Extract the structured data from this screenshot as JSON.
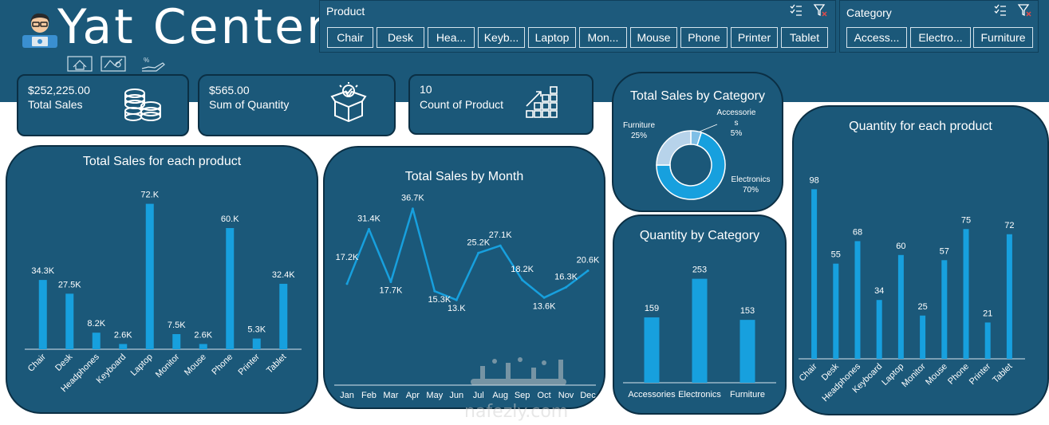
{
  "app": {
    "title": "Yat Center"
  },
  "colors": {
    "header_bg": "#1b5879",
    "card_border": "#0b2f44",
    "bar": "#17a0de",
    "donut_light": "#b7d3ea",
    "text": "#ffffff"
  },
  "header": {
    "nav_icons": [
      "home-icon",
      "map-icon",
      "discount-hand-icon"
    ]
  },
  "slicers": {
    "product": {
      "title": "Product",
      "items": [
        "Chair",
        "Desk",
        "Hea...",
        "Keyb...",
        "Laptop",
        "Mon...",
        "Mouse",
        "Phone",
        "Printer",
        "Tablet"
      ]
    },
    "category": {
      "title": "Category",
      "items": [
        "Access...",
        "Electro...",
        "Furniture"
      ]
    }
  },
  "kpis": [
    {
      "value": "$252,225.00",
      "label": "Total Sales",
      "icon": "coins-icon"
    },
    {
      "value": "$565.00",
      "label": "Sum of Quantity",
      "icon": "box-check-icon"
    },
    {
      "value": "10",
      "label": "Count of Product",
      "icon": "stacked-boxes-growth-icon"
    }
  ],
  "chart_data": [
    {
      "id": "sales_by_product",
      "type": "bar",
      "title": "Total Sales for each product",
      "categories": [
        "Chair",
        "Desk",
        "Headphones",
        "Keyboard",
        "Laptop",
        "Monitor",
        "Mouse",
        "Phone",
        "Printer",
        "Tablet"
      ],
      "values": [
        34.3,
        27.5,
        8.2,
        2.6,
        72.0,
        7.5,
        2.6,
        60.0,
        5.3,
        32.4
      ],
      "labels": [
        "34.3K",
        "27.5K",
        "8.2K",
        "2.6K",
        "72.K",
        "7.5K",
        "2.6K",
        "60.K",
        "5.3K",
        "32.4K"
      ],
      "ylim": [
        0,
        75
      ]
    },
    {
      "id": "sales_by_month",
      "type": "line",
      "title": "Total Sales by Month",
      "categories": [
        "Jan",
        "Feb",
        "Mar",
        "Apr",
        "May",
        "Jun",
        "Jul",
        "Aug",
        "Sep",
        "Oct",
        "Nov",
        "Dec"
      ],
      "values": [
        17.2,
        31.4,
        17.7,
        36.7,
        15.3,
        13.0,
        25.2,
        27.1,
        18.2,
        13.6,
        16.3,
        20.6
      ],
      "labels": [
        "17.2K",
        "31.4K",
        "17.7K",
        "36.7K",
        "15.3K",
        "13.K",
        "25.2K",
        "27.1K",
        "18.2K",
        "13.6K",
        "16.3K",
        "20.6K"
      ],
      "ylim": [
        0,
        40
      ]
    },
    {
      "id": "sales_by_category",
      "type": "pie",
      "title": "Total Sales by Category",
      "categories": [
        "Accessories",
        "Electronics",
        "Furniture"
      ],
      "values": [
        5,
        70,
        25
      ],
      "labels": [
        "Accessorie\ns\n5%",
        "Electronics\n70%",
        "Furniture\n25%"
      ]
    },
    {
      "id": "quantity_by_category",
      "type": "bar",
      "title": "Quantity by Category",
      "categories": [
        "Accessories",
        "Electronics",
        "Furniture"
      ],
      "values": [
        159,
        253,
        153
      ],
      "labels": [
        "159",
        "253",
        "153"
      ],
      "ylim": [
        0,
        260
      ]
    },
    {
      "id": "quantity_by_product",
      "type": "bar",
      "title": "Quantity for each product",
      "categories": [
        "Chair",
        "Desk",
        "Headphones",
        "Keyboard",
        "Laptop",
        "Monitor",
        "Mouse",
        "Phone",
        "Printer",
        "Tablet"
      ],
      "values": [
        98,
        55,
        68,
        34,
        60,
        25,
        57,
        75,
        21,
        72
      ],
      "labels": [
        "98",
        "55",
        "68",
        "34",
        "60",
        "25",
        "57",
        "75",
        "21",
        "72"
      ],
      "ylim": [
        0,
        100
      ]
    }
  ],
  "watermark": {
    "text": "nafezly.com"
  }
}
